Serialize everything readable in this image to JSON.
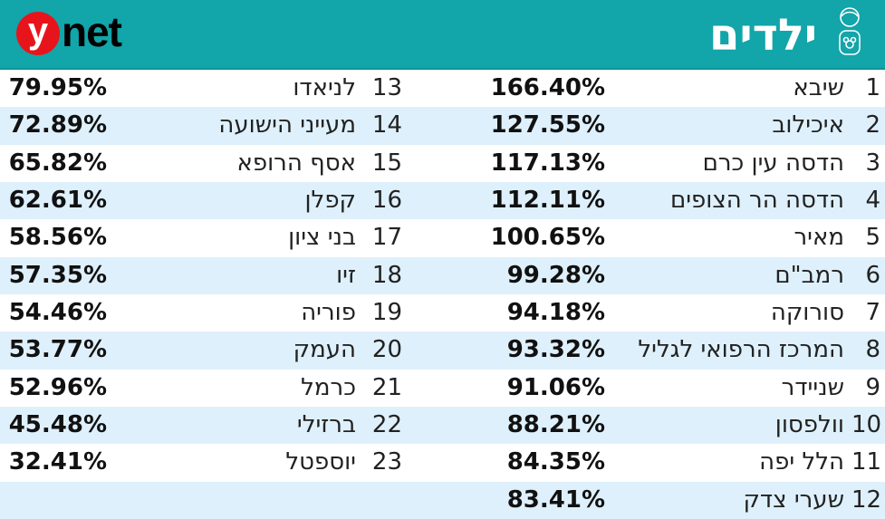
{
  "header": {
    "logo": {
      "circle_letter": "y",
      "text": "net",
      "circle_color": "#e8141c"
    },
    "title": "ילדים",
    "icon": "child-icon",
    "background_color": "#12a5a9"
  },
  "table": {
    "right_column": [
      {
        "rank": "1",
        "name": "שיבא",
        "value": "166.40%"
      },
      {
        "rank": "2",
        "name": "איכילוב",
        "value": "127.55%"
      },
      {
        "rank": "3",
        "name": "הדסה עין כרם",
        "value": "117.13%"
      },
      {
        "rank": "4",
        "name": "הדסה הר הצופים",
        "value": "112.11%"
      },
      {
        "rank": "5",
        "name": "מאיר",
        "value": "100.65%"
      },
      {
        "rank": "6",
        "name": "רמב\"ם",
        "value": "99.28%"
      },
      {
        "rank": "7",
        "name": "סורוקה",
        "value": "94.18%"
      },
      {
        "rank": "8",
        "name": "המרכז הרפואי לגליל",
        "value": "93.32%"
      },
      {
        "rank": "9",
        "name": "שניידר",
        "value": "91.06%"
      },
      {
        "rank": "10",
        "name": "וולפסון",
        "value": "88.21%"
      },
      {
        "rank": "11",
        "name": "הלל יפה",
        "value": "84.35%"
      },
      {
        "rank": "12",
        "name": "שערי צדק",
        "value": "83.41%"
      }
    ],
    "left_column": [
      {
        "rank": "13",
        "name": "לניאדו",
        "value": "79.95%"
      },
      {
        "rank": "14",
        "name": "מעייני הישועה",
        "value": "72.89%"
      },
      {
        "rank": "15",
        "name": "אסף הרופא",
        "value": "65.82%"
      },
      {
        "rank": "16",
        "name": "קפלן",
        "value": "62.61%"
      },
      {
        "rank": "17",
        "name": "בני ציון",
        "value": "58.56%"
      },
      {
        "rank": "18",
        "name": "זיו",
        "value": "57.35%"
      },
      {
        "rank": "19",
        "name": "פוריה",
        "value": "54.46%"
      },
      {
        "rank": "20",
        "name": "העמק",
        "value": "53.77%"
      },
      {
        "rank": "21",
        "name": "כרמל",
        "value": "52.96%"
      },
      {
        "rank": "22",
        "name": "ברזילי",
        "value": "45.48%"
      },
      {
        "rank": "23",
        "name": "יוספטל",
        "value": "32.41%"
      },
      {
        "rank": "",
        "name": "",
        "value": ""
      }
    ],
    "alt_row_color": "#def0fb"
  }
}
